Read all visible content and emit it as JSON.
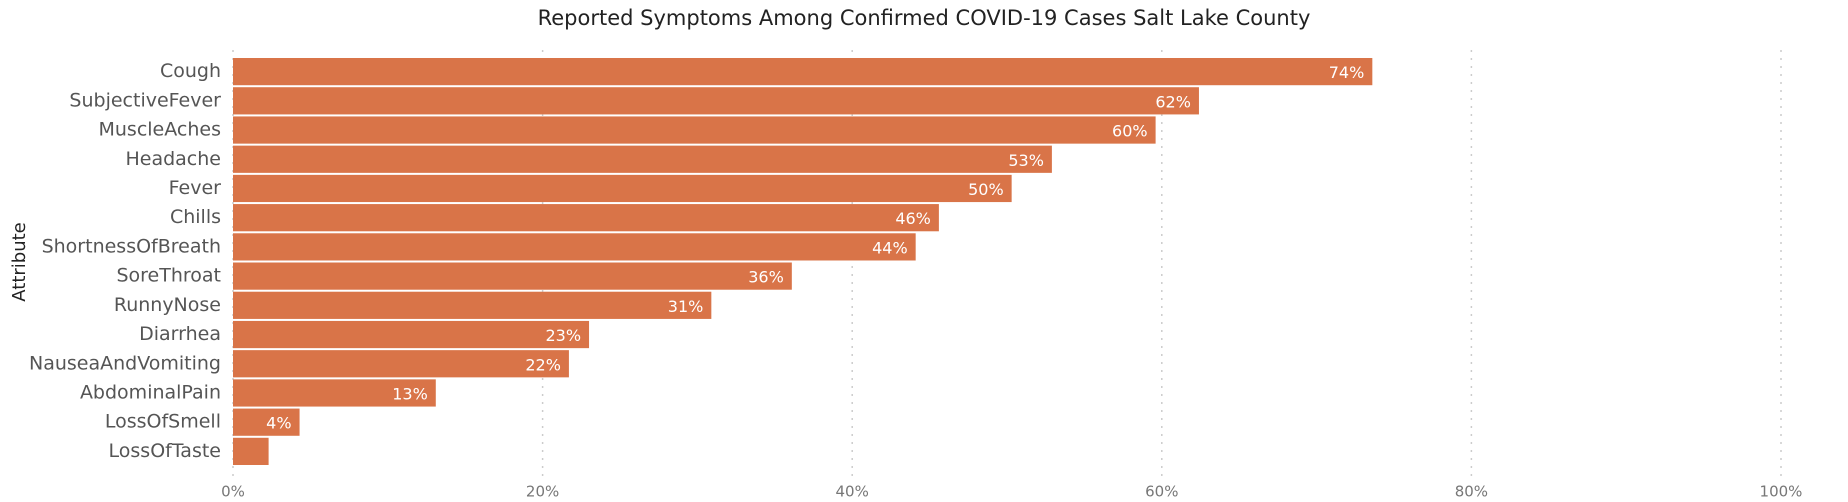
{
  "chart_data": {
    "type": "bar",
    "orientation": "horizontal",
    "title": "Reported Symptoms Among Confirmed COVID-19 Cases Salt Lake County",
    "y_label": "Attribute",
    "categories": [
      "Cough",
      "SubjectiveFever",
      "MuscleAches",
      "Headache",
      "Fever",
      "Chills",
      "ShortnessOfBreath",
      "SoreThroat",
      "RunnyNose",
      "Diarrhea",
      "NauseaAndVomiting",
      "AbdominalPain",
      "LossOfSmell",
      "LossOfTaste"
    ],
    "values": [
      73.6,
      62.4,
      59.6,
      52.9,
      50.3,
      45.6,
      44.1,
      36.1,
      30.9,
      23.0,
      21.7,
      13.1,
      4.3,
      2.3
    ],
    "value_labels": [
      "74%",
      "62%",
      "60%",
      "53%",
      "50%",
      "46%",
      "44%",
      "36%",
      "31%",
      "23%",
      "22%",
      "13%",
      "4%",
      null
    ],
    "color": "#d97448",
    "xlim": [
      0,
      100
    ],
    "xticks": [
      {
        "value": 0,
        "label": "0%"
      },
      {
        "value": 20,
        "label": "20%"
      },
      {
        "value": 40,
        "label": "40%"
      },
      {
        "value": 60,
        "label": "60%"
      },
      {
        "value": 80,
        "label": "80%"
      },
      {
        "value": 100,
        "label": "100%"
      }
    ],
    "grid": true
  }
}
